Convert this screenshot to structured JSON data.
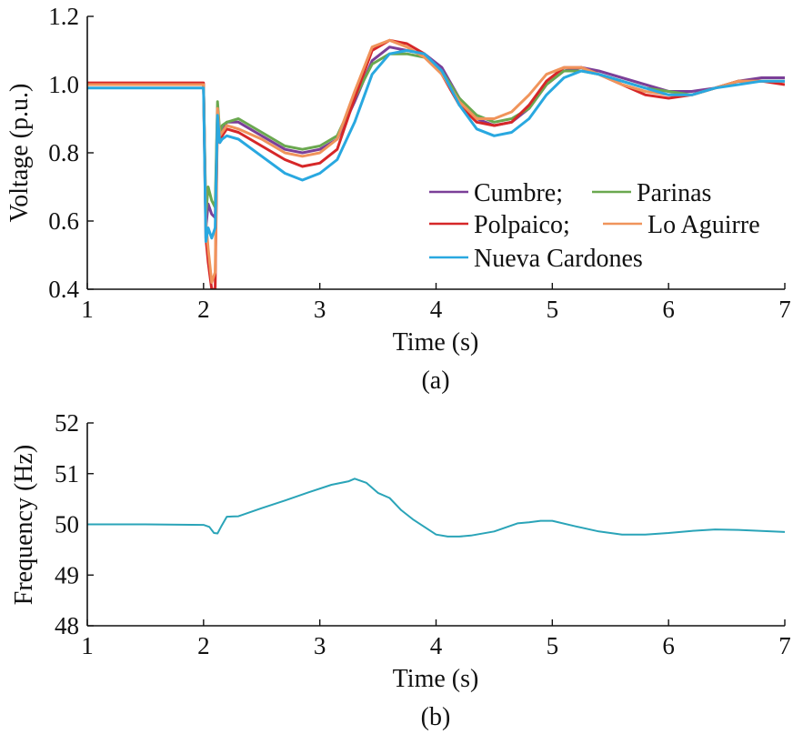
{
  "chart_data": [
    {
      "type": "line",
      "caption": "(a)",
      "xlabel": "Time (s)",
      "ylabel": "Voltage (p.u.)",
      "xlim": [
        1,
        7
      ],
      "ylim": [
        0.4,
        1.2
      ],
      "xticks": [
        1,
        2,
        3,
        4,
        5,
        6,
        7
      ],
      "yticks": [
        0.4,
        0.6,
        0.8,
        1.0,
        1.2
      ],
      "ytick_labels": [
        "0.4",
        "0.6",
        "0.8",
        "1.0",
        "1.2"
      ],
      "grid": false,
      "legend": {
        "placement": "lower-right",
        "rows": [
          [
            "Cumbre;",
            "Parinas"
          ],
          [
            "Polpaico;",
            "Lo Aguirre"
          ],
          [
            "Nueva Cardones"
          ]
        ]
      },
      "series": [
        {
          "name": "Cumbre;",
          "color": "#7b3f98",
          "x": [
            1,
            2.0,
            2.02,
            2.04,
            2.07,
            2.1,
            2.12,
            2.14,
            2.16,
            2.2,
            2.3,
            2.5,
            2.7,
            2.85,
            3.0,
            3.15,
            3.3,
            3.45,
            3.6,
            3.75,
            3.9,
            4.05,
            4.2,
            4.35,
            4.5,
            4.65,
            4.8,
            4.95,
            5.1,
            5.25,
            5.4,
            5.6,
            5.8,
            6.0,
            6.2,
            6.4,
            6.6,
            6.8,
            7.0
          ],
          "y": [
            1.0,
            1.0,
            0.58,
            0.65,
            0.62,
            0.61,
            0.93,
            0.84,
            0.86,
            0.89,
            0.89,
            0.85,
            0.81,
            0.8,
            0.81,
            0.84,
            0.95,
            1.07,
            1.11,
            1.1,
            1.09,
            1.05,
            0.96,
            0.9,
            0.88,
            0.89,
            0.93,
            1.0,
            1.04,
            1.05,
            1.04,
            1.02,
            1.0,
            0.98,
            0.98,
            0.99,
            1.01,
            1.02,
            1.02
          ]
        },
        {
          "name": "Parinas",
          "color": "#6aa84f",
          "x": [
            1,
            2.0,
            2.02,
            2.04,
            2.07,
            2.1,
            2.12,
            2.14,
            2.16,
            2.2,
            2.3,
            2.5,
            2.7,
            2.85,
            3.0,
            3.15,
            3.3,
            3.45,
            3.6,
            3.75,
            3.9,
            4.05,
            4.2,
            4.35,
            4.5,
            4.65,
            4.8,
            4.95,
            5.1,
            5.25,
            5.4,
            5.6,
            5.8,
            6.0,
            6.2,
            6.4,
            6.6,
            6.8,
            7.0
          ],
          "y": [
            1.0,
            1.0,
            0.62,
            0.7,
            0.66,
            0.64,
            0.95,
            0.86,
            0.88,
            0.89,
            0.9,
            0.86,
            0.82,
            0.81,
            0.82,
            0.85,
            0.96,
            1.06,
            1.09,
            1.09,
            1.08,
            1.04,
            0.96,
            0.91,
            0.89,
            0.9,
            0.93,
            1.0,
            1.04,
            1.04,
            1.03,
            1.01,
            0.99,
            0.98,
            0.97,
            0.99,
            1.01,
            1.01,
            1.01
          ]
        },
        {
          "name": "Polpaico;",
          "color": "#d62728",
          "x": [
            1,
            2.0,
            2.02,
            2.04,
            2.07,
            2.1,
            2.12,
            2.14,
            2.16,
            2.2,
            2.3,
            2.5,
            2.7,
            2.85,
            3.0,
            3.15,
            3.3,
            3.45,
            3.6,
            3.75,
            3.9,
            4.05,
            4.2,
            4.35,
            4.5,
            4.65,
            4.8,
            4.95,
            5.1,
            5.25,
            5.4,
            5.6,
            5.8,
            6.0,
            6.2,
            6.4,
            6.6,
            6.8,
            7.0
          ],
          "y": [
            1.005,
            1.005,
            0.55,
            0.48,
            0.4,
            0.4,
            0.92,
            0.83,
            0.85,
            0.87,
            0.86,
            0.82,
            0.78,
            0.76,
            0.77,
            0.81,
            0.96,
            1.1,
            1.13,
            1.12,
            1.09,
            1.03,
            0.94,
            0.89,
            0.88,
            0.89,
            0.94,
            1.01,
            1.05,
            1.05,
            1.03,
            1.0,
            0.97,
            0.96,
            0.97,
            0.99,
            1.01,
            1.01,
            1.0
          ]
        },
        {
          "name": "Lo Aguirre",
          "color": "#f0945b",
          "x": [
            1,
            2.0,
            2.02,
            2.04,
            2.07,
            2.1,
            2.12,
            2.14,
            2.16,
            2.2,
            2.3,
            2.5,
            2.7,
            2.85,
            3.0,
            3.15,
            3.3,
            3.45,
            3.6,
            3.75,
            3.9,
            4.05,
            4.2,
            4.35,
            4.5,
            4.65,
            4.8,
            4.95,
            5.1,
            5.25,
            5.4,
            5.6,
            5.8,
            6.0,
            6.2,
            6.4,
            6.6,
            6.8,
            7.0
          ],
          "y": [
            1.0,
            1.0,
            0.6,
            0.52,
            0.42,
            0.45,
            0.93,
            0.85,
            0.86,
            0.88,
            0.87,
            0.84,
            0.8,
            0.79,
            0.8,
            0.84,
            0.98,
            1.11,
            1.13,
            1.11,
            1.08,
            1.03,
            0.95,
            0.9,
            0.9,
            0.92,
            0.97,
            1.03,
            1.05,
            1.05,
            1.03,
            1.0,
            0.98,
            0.97,
            0.97,
            0.99,
            1.01,
            1.01,
            1.01
          ]
        },
        {
          "name": "Nueva Cardones",
          "color": "#29a8e0",
          "x": [
            1,
            2.0,
            2.02,
            2.04,
            2.07,
            2.1,
            2.12,
            2.14,
            2.16,
            2.2,
            2.3,
            2.5,
            2.7,
            2.85,
            3.0,
            3.15,
            3.3,
            3.45,
            3.6,
            3.75,
            3.9,
            4.05,
            4.2,
            4.35,
            4.5,
            4.65,
            4.8,
            4.95,
            5.1,
            5.25,
            5.4,
            5.6,
            5.8,
            6.0,
            6.2,
            6.4,
            6.6,
            6.8,
            7.0
          ],
          "y": [
            0.99,
            0.99,
            0.54,
            0.58,
            0.55,
            0.58,
            0.91,
            0.83,
            0.84,
            0.85,
            0.84,
            0.79,
            0.74,
            0.72,
            0.74,
            0.78,
            0.89,
            1.03,
            1.09,
            1.1,
            1.09,
            1.04,
            0.94,
            0.87,
            0.85,
            0.86,
            0.9,
            0.97,
            1.02,
            1.04,
            1.03,
            1.01,
            0.99,
            0.97,
            0.97,
            0.99,
            1.0,
            1.01,
            1.01
          ]
        }
      ]
    },
    {
      "type": "line",
      "caption": "(b)",
      "xlabel": "Time (s)",
      "ylabel": "Frequency (Hz)",
      "xlim": [
        1,
        7
      ],
      "ylim": [
        48,
        52
      ],
      "xticks": [
        1,
        2,
        3,
        4,
        5,
        6,
        7
      ],
      "yticks": [
        48,
        49,
        50,
        51,
        52
      ],
      "ytick_labels": [
        "48",
        "49",
        "50",
        "51",
        "52"
      ],
      "grid": false,
      "series": [
        {
          "color": "#2aa4b8",
          "x": [
            1,
            1.5,
            2.0,
            2.05,
            2.09,
            2.12,
            2.15,
            2.2,
            2.3,
            2.5,
            2.7,
            2.9,
            3.1,
            3.25,
            3.3,
            3.4,
            3.5,
            3.6,
            3.7,
            3.8,
            3.9,
            4.0,
            4.1,
            4.2,
            4.3,
            4.5,
            4.7,
            4.8,
            4.9,
            5.0,
            5.2,
            5.4,
            5.6,
            5.8,
            6.0,
            6.2,
            6.4,
            6.6,
            6.8,
            7.0
          ],
          "y": [
            50.0,
            50.0,
            49.99,
            49.95,
            49.83,
            49.82,
            49.95,
            50.15,
            50.16,
            50.32,
            50.47,
            50.63,
            50.78,
            50.85,
            50.9,
            50.82,
            50.62,
            50.52,
            50.28,
            50.1,
            49.95,
            49.8,
            49.76,
            49.76,
            49.78,
            49.86,
            50.02,
            50.04,
            50.07,
            50.07,
            49.96,
            49.86,
            49.8,
            49.8,
            49.83,
            49.87,
            49.9,
            49.89,
            49.87,
            49.85
          ]
        }
      ]
    }
  ]
}
